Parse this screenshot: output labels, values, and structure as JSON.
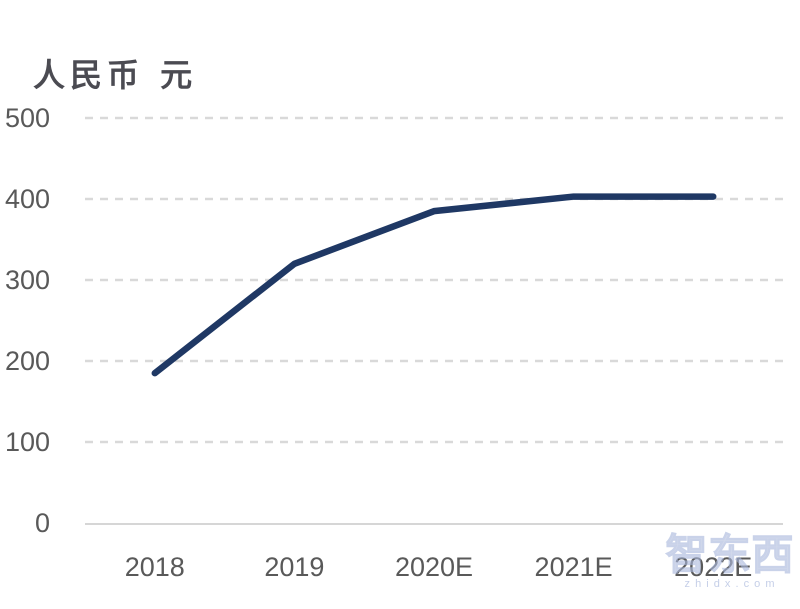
{
  "title": {
    "text": "人民币 元"
  },
  "chart_data": {
    "type": "line",
    "title": "人民币 元",
    "xlabel": "",
    "ylabel": "人民币 元",
    "categories": [
      "2018",
      "2019",
      "2020E",
      "2021E",
      "2022E"
    ],
    "series": [
      {
        "name": "人民币 元",
        "values": [
          185,
          320,
          385,
          403,
          403
        ]
      }
    ],
    "ylim": [
      0,
      500
    ],
    "yticks": [
      0,
      100,
      200,
      300,
      400,
      500
    ],
    "grid": "horizontal-dashed",
    "legend": "none",
    "line_color": "#1f3864",
    "axis_label_color": "#595959",
    "gridline_color": "#d9d9d9",
    "axis_line_color": "#d6d6d6"
  },
  "watermark": {
    "logo": "智东西",
    "domain": "z h i d x . c o m"
  }
}
